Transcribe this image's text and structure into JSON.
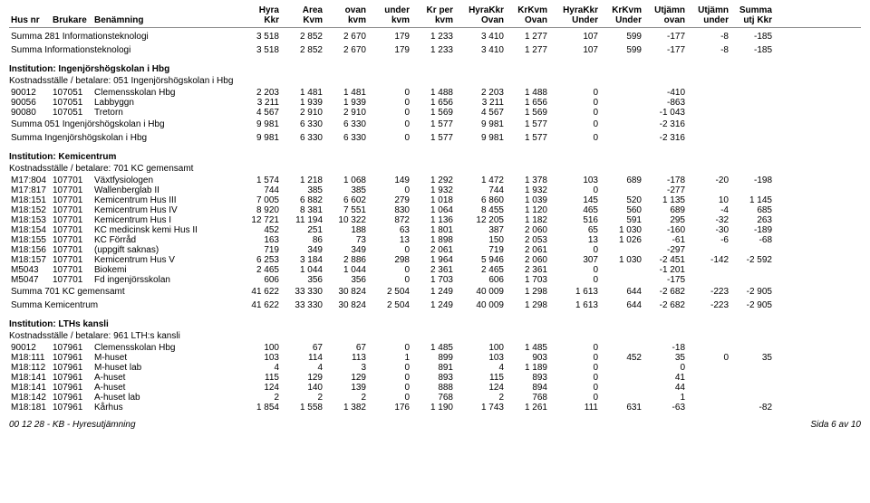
{
  "header": {
    "h1": "Hus nr",
    "h2": "Brukare",
    "h3": "Benämning",
    "h4a": "Hyra",
    "h4b": "Kkr",
    "h5a": "Area",
    "h5b": "Kvm",
    "h6a": "ovan",
    "h6b": "kvm",
    "h7a": "under",
    "h7b": "kvm",
    "h8a": "Kr per",
    "h8b": "kvm",
    "h9a": "HyraKkr",
    "h9b": "Ovan",
    "h10a": "KrKvm",
    "h10b": "Ovan",
    "h11a": "HyraKkr",
    "h11b": "Under",
    "h12a": "KrKvm",
    "h12b": "Under",
    "h13a": "Utjämn",
    "h13b": "ovan",
    "h14a": "Utjämn",
    "h14b": "under",
    "h15a": "Summa",
    "h15b": "utj Kkr"
  },
  "s1": {
    "r1": {
      "lbl": "Summa   281 Informationsteknologi",
      "c": [
        "3 518",
        "2 852",
        "2 670",
        "179",
        "1 233",
        "3 410",
        "1 277",
        "107",
        "599",
        "-177",
        "-8",
        "-185"
      ]
    },
    "r2": {
      "lbl": "Summa  Informationsteknologi",
      "c": [
        "3 518",
        "2 852",
        "2 670",
        "179",
        "1 233",
        "3 410",
        "1 277",
        "107",
        "599",
        "-177",
        "-8",
        "-185"
      ]
    }
  },
  "s2": {
    "title": "Institution:     Ingenjörshögskolan i Hbg",
    "sub": "Kostnadsställe / betalare:       051 Ingenjörshögskolan i Hbg",
    "rows": [
      {
        "hus": "90012",
        "bru": "107051",
        "ben": "Clemensskolan Hbg",
        "c": [
          "2 203",
          "1 481",
          "1 481",
          "0",
          "1 488",
          "2 203",
          "1 488",
          "0",
          "",
          "-410",
          "",
          ""
        ]
      },
      {
        "hus": "90056",
        "bru": "107051",
        "ben": "Labbyggn",
        "c": [
          "3 211",
          "1 939",
          "1 939",
          "0",
          "1 656",
          "3 211",
          "1 656",
          "0",
          "",
          "-863",
          "",
          ""
        ]
      },
      {
        "hus": "90080",
        "bru": "107051",
        "ben": "Tretorn",
        "c": [
          "4 567",
          "2 910",
          "2 910",
          "0",
          "1 569",
          "4 567",
          "1 569",
          "0",
          "",
          "-1 043",
          "",
          ""
        ]
      }
    ],
    "sum1": {
      "lbl": "Summa   051 Ingenjörshögskolan i Hbg",
      "c": [
        "9 981",
        "6 330",
        "6 330",
        "0",
        "1 577",
        "9 981",
        "1 577",
        "0",
        "",
        "-2 316",
        "",
        ""
      ]
    },
    "sum2": {
      "lbl": "Summa  Ingenjörshögskolan i Hbg",
      "c": [
        "9 981",
        "6 330",
        "6 330",
        "0",
        "1 577",
        "9 981",
        "1 577",
        "0",
        "",
        "-2 316",
        "",
        ""
      ]
    }
  },
  "s3": {
    "title": "Institution:     Kemicentrum",
    "sub": "Kostnadsställe / betalare:       701 KC gemensamt",
    "rows": [
      {
        "hus": "M17:804",
        "bru": "107701",
        "ben": "Växtfysiologen",
        "c": [
          "1 574",
          "1 218",
          "1 068",
          "149",
          "1 292",
          "1 472",
          "1 378",
          "103",
          "689",
          "-178",
          "-20",
          "-198"
        ]
      },
      {
        "hus": "M17:817",
        "bru": "107701",
        "ben": "Wallenberglab II",
        "c": [
          "744",
          "385",
          "385",
          "0",
          "1 932",
          "744",
          "1 932",
          "0",
          "",
          "-277",
          "",
          ""
        ]
      },
      {
        "hus": "M18:151",
        "bru": "107701",
        "ben": "Kemicentrum  Hus III",
        "c": [
          "7 005",
          "6 882",
          "6 602",
          "279",
          "1 018",
          "6 860",
          "1 039",
          "145",
          "520",
          "1 135",
          "10",
          "1 145"
        ]
      },
      {
        "hus": "M18:152",
        "bru": "107701",
        "ben": "Kemicentrum  Hus IV",
        "c": [
          "8 920",
          "8 381",
          "7 551",
          "830",
          "1 064",
          "8 455",
          "1 120",
          "465",
          "560",
          "689",
          "-4",
          "685"
        ]
      },
      {
        "hus": "M18:153",
        "bru": "107701",
        "ben": "Kemicentrum  Hus I",
        "c": [
          "12 721",
          "11 194",
          "10 322",
          "872",
          "1 136",
          "12 205",
          "1 182",
          "516",
          "591",
          "295",
          "-32",
          "263"
        ]
      },
      {
        "hus": "M18:154",
        "bru": "107701",
        "ben": "KC medicinsk kemi  Hus II",
        "c": [
          "452",
          "251",
          "188",
          "63",
          "1 801",
          "387",
          "2 060",
          "65",
          "1 030",
          "-160",
          "-30",
          "-189"
        ]
      },
      {
        "hus": "M18:155",
        "bru": "107701",
        "ben": "KC Förråd",
        "c": [
          "163",
          "86",
          "73",
          "13",
          "1 898",
          "150",
          "2 053",
          "13",
          "1 026",
          "-61",
          "-6",
          "-68"
        ]
      },
      {
        "hus": "M18:156",
        "bru": "107701",
        "ben": "(uppgift saknas)",
        "c": [
          "719",
          "349",
          "349",
          "0",
          "2 061",
          "719",
          "2 061",
          "0",
          "",
          "-297",
          "",
          ""
        ]
      },
      {
        "hus": "M18:157",
        "bru": "107701",
        "ben": "Kemicentrum  Hus V",
        "c": [
          "6 253",
          "3 184",
          "2 886",
          "298",
          "1 964",
          "5 946",
          "2 060",
          "307",
          "1 030",
          "-2 451",
          "-142",
          "-2 592"
        ]
      },
      {
        "hus": "M5043",
        "bru": "107701",
        "ben": "Biokemi",
        "c": [
          "2 465",
          "1 044",
          "1 044",
          "0",
          "2 361",
          "2 465",
          "2 361",
          "0",
          "",
          "-1 201",
          "",
          ""
        ]
      },
      {
        "hus": "M5047",
        "bru": "107701",
        "ben": "Fd ingenjörsskolan",
        "c": [
          "606",
          "356",
          "356",
          "0",
          "1 703",
          "606",
          "1 703",
          "0",
          "",
          "-175",
          "",
          ""
        ]
      }
    ],
    "sum1": {
      "lbl": "Summa   701 KC gemensamt",
      "c": [
        "41 622",
        "33 330",
        "30 824",
        "2 504",
        "1 249",
        "40 009",
        "1 298",
        "1 613",
        "644",
        "-2 682",
        "-223",
        "-2 905"
      ]
    },
    "sum2": {
      "lbl": "Summa  Kemicentrum",
      "c": [
        "41 622",
        "33 330",
        "30 824",
        "2 504",
        "1 249",
        "40 009",
        "1 298",
        "1 613",
        "644",
        "-2 682",
        "-223",
        "-2 905"
      ]
    }
  },
  "s4": {
    "title": "Institution:     LTHs kansli",
    "sub": "Kostnadsställe / betalare:       961 LTH:s kansli",
    "rows": [
      {
        "hus": "90012",
        "bru": "107961",
        "ben": "Clemensskolan Hbg",
        "c": [
          "100",
          "67",
          "67",
          "0",
          "1 485",
          "100",
          "1 485",
          "0",
          "",
          "-18",
          "",
          ""
        ]
      },
      {
        "hus": "M18:111",
        "bru": "107961",
        "ben": "M-huset",
        "c": [
          "103",
          "114",
          "113",
          "1",
          "899",
          "103",
          "903",
          "0",
          "452",
          "35",
          "0",
          "35"
        ]
      },
      {
        "hus": "M18:112",
        "bru": "107961",
        "ben": "M-huset lab",
        "c": [
          "4",
          "4",
          "3",
          "0",
          "891",
          "4",
          "1 189",
          "0",
          "",
          "0",
          "",
          ""
        ]
      },
      {
        "hus": "M18:141",
        "bru": "107961",
        "ben": "A-huset",
        "c": [
          "115",
          "129",
          "129",
          "0",
          "893",
          "115",
          "893",
          "0",
          "",
          "41",
          "",
          ""
        ]
      },
      {
        "hus": "M18:141",
        "bru": "107961",
        "ben": "A-huset",
        "c": [
          "124",
          "140",
          "139",
          "0",
          "888",
          "124",
          "894",
          "0",
          "",
          "44",
          "",
          ""
        ]
      },
      {
        "hus": "M18:142",
        "bru": "107961",
        "ben": "A-huset lab",
        "c": [
          "2",
          "2",
          "2",
          "0",
          "768",
          "2",
          "768",
          "0",
          "",
          "1",
          "",
          ""
        ]
      },
      {
        "hus": "M18:181",
        "bru": "107961",
        "ben": "Kårhus",
        "c": [
          "1 854",
          "1 558",
          "1 382",
          "176",
          "1 190",
          "1 743",
          "1 261",
          "111",
          "631",
          "-63",
          "",
          "-82"
        ]
      }
    ]
  },
  "footer": {
    "left": "00 12 28 - KB - Hyresutjämning",
    "right": "Sida 6 av 10"
  }
}
